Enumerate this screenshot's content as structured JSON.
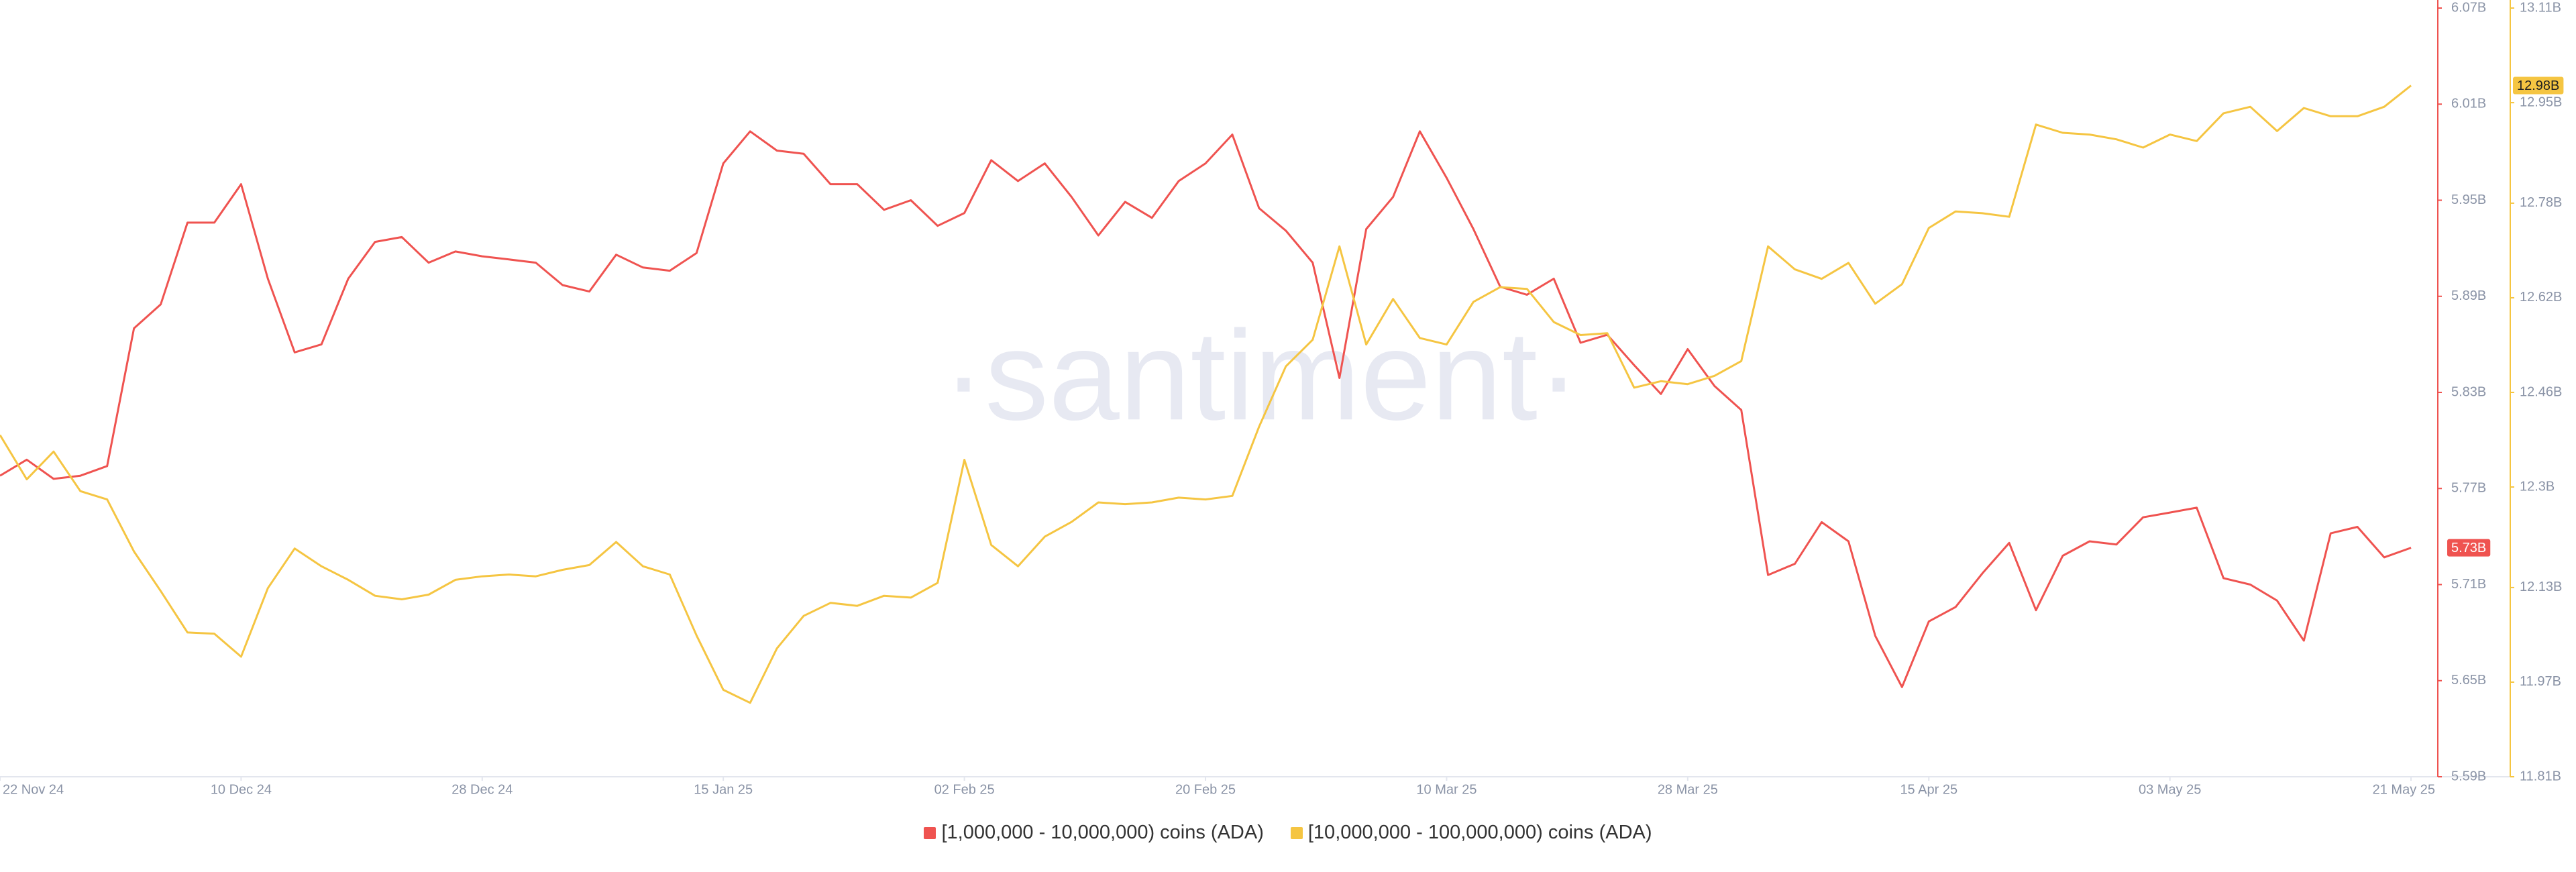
{
  "chart_data": {
    "type": "line",
    "watermark": "·santiment·",
    "x": [
      "2024-11-22",
      "2024-11-24",
      "2024-11-26",
      "2024-11-28",
      "2024-11-30",
      "2024-12-02",
      "2024-12-04",
      "2024-12-06",
      "2024-12-08",
      "2024-12-10",
      "2024-12-12",
      "2024-12-14",
      "2024-12-16",
      "2024-12-18",
      "2024-12-20",
      "2024-12-22",
      "2024-12-24",
      "2024-12-26",
      "2024-12-28",
      "2024-12-30",
      "2025-01-01",
      "2025-01-03",
      "2025-01-05",
      "2025-01-07",
      "2025-01-09",
      "2025-01-11",
      "2025-01-13",
      "2025-01-15",
      "2025-01-17",
      "2025-01-19",
      "2025-01-21",
      "2025-01-23",
      "2025-01-25",
      "2025-01-27",
      "2025-01-29",
      "2025-01-31",
      "2025-02-02",
      "2025-02-04",
      "2025-02-06",
      "2025-02-08",
      "2025-02-10",
      "2025-02-12",
      "2025-02-14",
      "2025-02-16",
      "2025-02-18",
      "2025-02-20",
      "2025-02-22",
      "2025-02-24",
      "2025-02-26",
      "2025-02-28",
      "2025-03-02",
      "2025-03-04",
      "2025-03-06",
      "2025-03-08",
      "2025-03-10",
      "2025-03-12",
      "2025-03-14",
      "2025-03-16",
      "2025-03-18",
      "2025-03-20",
      "2025-03-22",
      "2025-03-24",
      "2025-03-26",
      "2025-03-28",
      "2025-03-30",
      "2025-04-01",
      "2025-04-03",
      "2025-04-05",
      "2025-04-07",
      "2025-04-09",
      "2025-04-11",
      "2025-04-13",
      "2025-04-15",
      "2025-04-17",
      "2025-04-19",
      "2025-04-21",
      "2025-04-23",
      "2025-04-25",
      "2025-04-27",
      "2025-04-29",
      "2025-05-01",
      "2025-05-03",
      "2025-05-05",
      "2025-05-07",
      "2025-05-09",
      "2025-05-11",
      "2025-05-13",
      "2025-05-15",
      "2025-05-17",
      "2025-05-19",
      "2025-05-21"
    ],
    "xlim": [
      "2024-11-22",
      "2025-05-23"
    ],
    "xticks": [
      {
        "value": "2024-11-22",
        "label": "22 Nov 24"
      },
      {
        "value": "2024-12-10",
        "label": "10 Dec 24"
      },
      {
        "value": "2024-12-28",
        "label": "28 Dec 24"
      },
      {
        "value": "2025-01-15",
        "label": "15 Jan 25"
      },
      {
        "value": "2025-02-02",
        "label": "02 Feb 25"
      },
      {
        "value": "2025-02-20",
        "label": "20 Feb 25"
      },
      {
        "value": "2025-03-10",
        "label": "10 Mar 25"
      },
      {
        "value": "2025-03-28",
        "label": "28 Mar 25"
      },
      {
        "value": "2025-04-15",
        "label": "15 Apr 25"
      },
      {
        "value": "2025-05-03",
        "label": "03 May 25"
      },
      {
        "value": "2025-05-21",
        "label": "21 May 25"
      }
    ],
    "ylim": [
      5.59,
      6.07
    ],
    "yticks": [
      {
        "value": 5.59,
        "label": "5.59B"
      },
      {
        "value": 5.65,
        "label": "5.65B"
      },
      {
        "value": 5.71,
        "label": "5.71B"
      },
      {
        "value": 5.77,
        "label": "5.77B"
      },
      {
        "value": 5.83,
        "label": "5.83B"
      },
      {
        "value": 5.89,
        "label": "5.89B"
      },
      {
        "value": 5.95,
        "label": "5.95B"
      },
      {
        "value": 6.01,
        "label": "6.01B"
      },
      {
        "value": 6.07,
        "label": "6.07B"
      }
    ],
    "y2lim": [
      11.81,
      13.11
    ],
    "y2ticks": [
      {
        "value": 11.81,
        "label": "11.81B"
      },
      {
        "value": 11.97,
        "label": "11.97B"
      },
      {
        "value": 12.13,
        "label": "12.13B"
      },
      {
        "value": 12.3,
        "label": "12.3B"
      },
      {
        "value": 12.46,
        "label": "12.46B"
      },
      {
        "value": 12.62,
        "label": "12.62B"
      },
      {
        "value": 12.78,
        "label": "12.78B"
      },
      {
        "value": 12.95,
        "label": "12.95B"
      },
      {
        "value": 13.11,
        "label": "13.11B"
      }
    ],
    "series": [
      {
        "name": "[1,000,000 - 10,000,000) coins (ADA)",
        "color": "#ef5350",
        "axis": "y",
        "last_label": "5.73B",
        "values": [
          5.778,
          5.788,
          5.776,
          5.778,
          5.784,
          5.87,
          5.885,
          5.936,
          5.936,
          5.96,
          5.901,
          5.855,
          5.86,
          5.901,
          5.924,
          5.927,
          5.911,
          5.918,
          5.915,
          5.913,
          5.911,
          5.897,
          5.893,
          5.916,
          5.908,
          5.906,
          5.917,
          5.973,
          5.993,
          5.981,
          5.979,
          5.96,
          5.96,
          5.944,
          5.95,
          5.934,
          5.942,
          5.975,
          5.962,
          5.973,
          5.952,
          5.928,
          5.949,
          5.939,
          5.962,
          5.973,
          5.991,
          5.945,
          5.931,
          5.911,
          5.839,
          5.932,
          5.952,
          5.993,
          5.964,
          5.932,
          5.896,
          5.891,
          5.901,
          5.861,
          5.866,
          5.847,
          5.829,
          5.857,
          5.834,
          5.819,
          5.716,
          5.723,
          5.749,
          5.737,
          5.678,
          5.646,
          5.687,
          5.696,
          5.717,
          5.736,
          5.694,
          5.728,
          5.737,
          5.735,
          5.752,
          5.755,
          5.758,
          5.714,
          5.71,
          5.7,
          5.675,
          5.742,
          5.746,
          5.727,
          5.733
        ]
      },
      {
        "name": "[10,000,000 - 100,000,000) coins (ADA)",
        "color": "#f5c542",
        "axis": "y2",
        "last_label": "12.98B",
        "values": [
          12.388,
          12.313,
          12.36,
          12.293,
          12.279,
          12.191,
          12.124,
          12.054,
          12.052,
          12.013,
          12.129,
          12.196,
          12.166,
          12.143,
          12.116,
          12.11,
          12.118,
          12.143,
          12.149,
          12.152,
          12.149,
          12.16,
          12.168,
          12.207,
          12.166,
          12.152,
          12.049,
          11.957,
          11.935,
          12.027,
          12.082,
          12.104,
          12.099,
          12.116,
          12.113,
          12.138,
          12.346,
          12.202,
          12.166,
          12.216,
          12.241,
          12.274,
          12.271,
          12.274,
          12.282,
          12.279,
          12.285,
          12.402,
          12.504,
          12.549,
          12.707,
          12.541,
          12.618,
          12.552,
          12.541,
          12.613,
          12.638,
          12.635,
          12.579,
          12.557,
          12.56,
          12.468,
          12.479,
          12.474,
          12.488,
          12.513,
          12.707,
          12.668,
          12.652,
          12.679,
          12.61,
          12.643,
          12.738,
          12.766,
          12.763,
          12.757,
          12.913,
          12.899,
          12.896,
          12.888,
          12.874,
          12.896,
          12.885,
          12.932,
          12.943,
          12.902,
          12.941,
          12.927,
          12.927,
          12.943,
          12.979
        ]
      }
    ]
  }
}
